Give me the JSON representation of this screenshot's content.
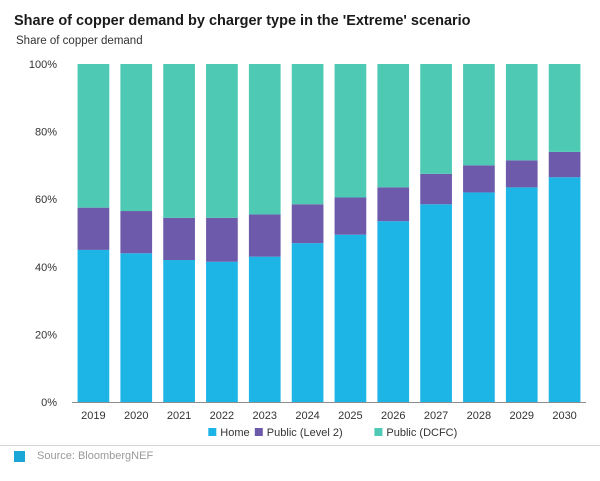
{
  "title": "Share of copper demand by charger type in the 'Extreme' scenario",
  "subtitle": "Share of copper demand",
  "source": "Source: BloombergNEF",
  "colors": {
    "home": "#1cb5e6",
    "level2": "#6d5aaa",
    "dcfc": "#4dc9b4",
    "source_mark": "#1aa7d8"
  },
  "chart_data": {
    "type": "bar",
    "stacked": true,
    "categories": [
      "2019",
      "2020",
      "2021",
      "2022",
      "2023",
      "2024",
      "2025",
      "2026",
      "2027",
      "2028",
      "2029",
      "2030"
    ],
    "series": [
      {
        "name": "Home",
        "values": [
          45,
          44,
          42,
          41.5,
          43,
          47,
          49.5,
          53.5,
          58.5,
          62,
          63.5,
          66.5
        ]
      },
      {
        "name": "Public (Level 2)",
        "values": [
          12.5,
          12.5,
          12.5,
          13,
          12.5,
          11.5,
          11,
          10,
          9,
          8,
          8,
          7.5
        ]
      },
      {
        "name": "Public (DCFC)",
        "values": [
          42.5,
          43.5,
          45.5,
          45.5,
          44.5,
          41.5,
          39.5,
          36.5,
          32.5,
          30,
          28.5,
          26
        ]
      }
    ],
    "yticks": [
      "0%",
      "20%",
      "40%",
      "60%",
      "80%",
      "100%"
    ],
    "ylim": [
      0,
      100
    ],
    "xlabel": "",
    "ylabel": "Share of copper demand",
    "legend_position": "bottom",
    "grid": false
  }
}
